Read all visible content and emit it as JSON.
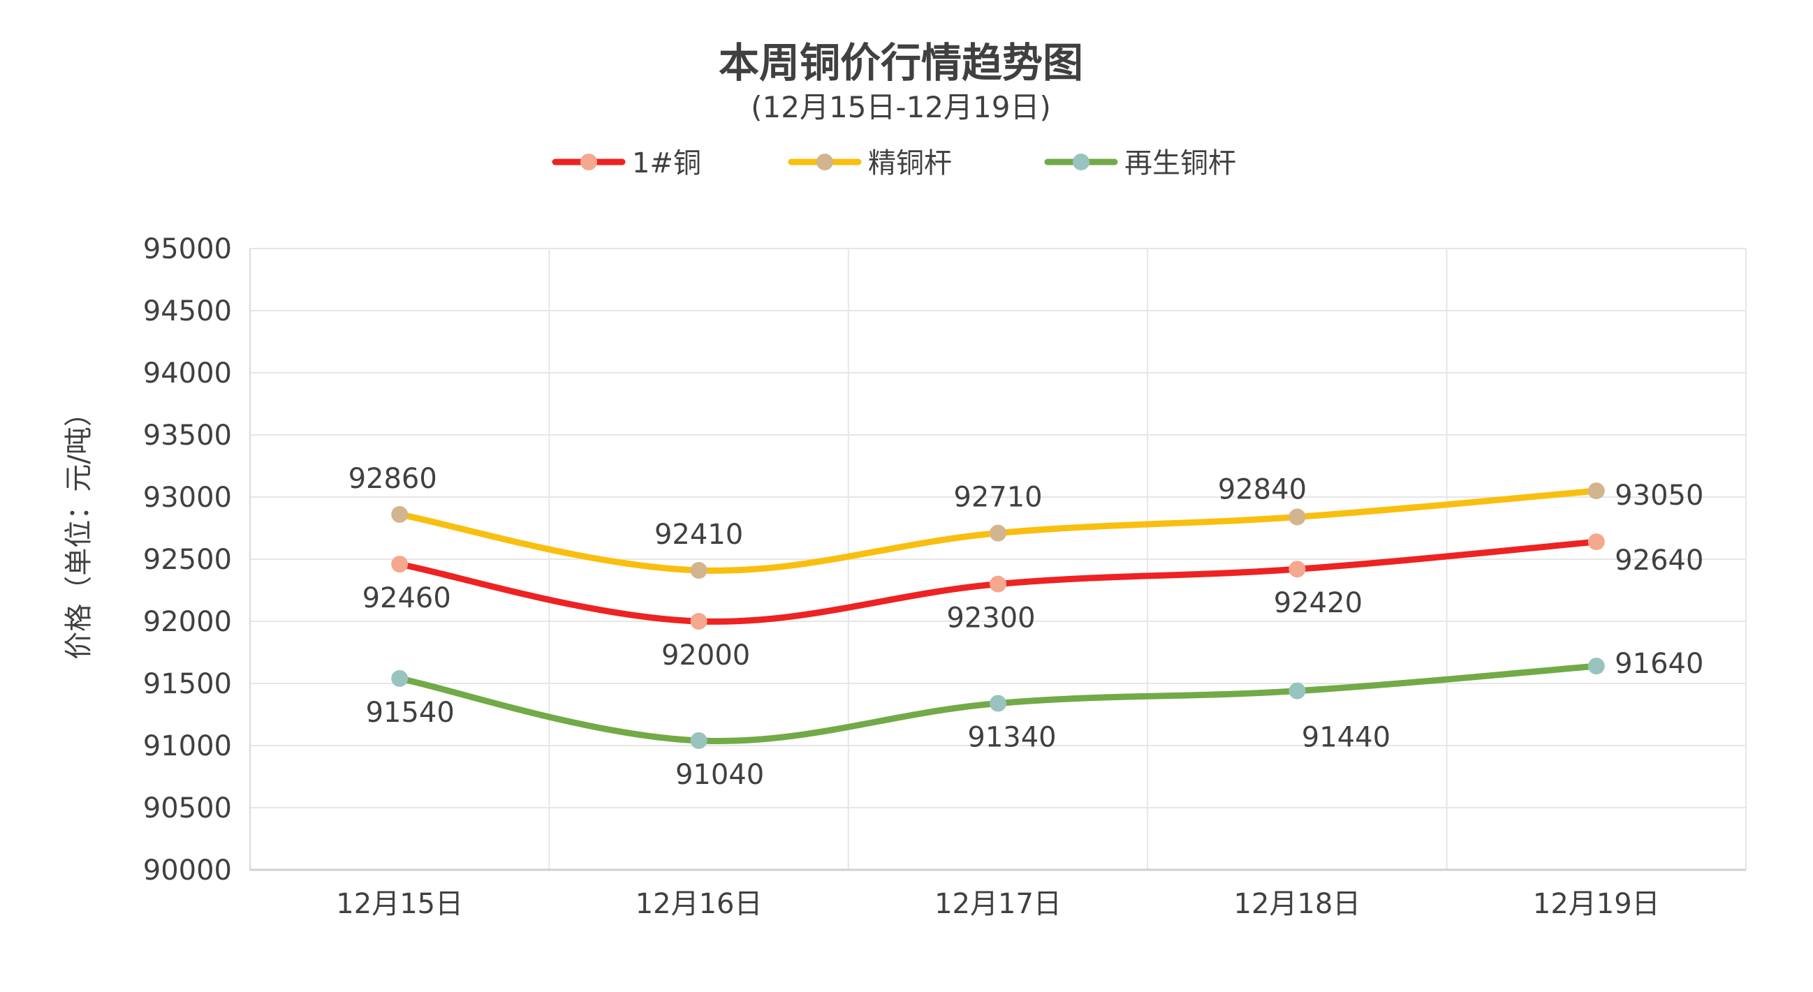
{
  "chart_data": {
    "type": "line",
    "title": "本周铜价行情趋势图",
    "subtitle": "(12月15日-12月19日)",
    "ylabel": "价格（单位：元/吨）",
    "xlabel": "",
    "categories": [
      "12月15日",
      "12月16日",
      "12月17日",
      "12月18日",
      "12月19日"
    ],
    "ylim": [
      90000,
      95000
    ],
    "ytick_step": 500,
    "ytick_labels": [
      "90000",
      "90500",
      "91000",
      "91500",
      "92000",
      "92500",
      "93000",
      "93500",
      "94000",
      "94500",
      "95000"
    ],
    "grid": true,
    "legend_position": "top",
    "smooth": true,
    "series": [
      {
        "name": "1#铜",
        "values": [
          92460,
          92000,
          92300,
          92420,
          92640
        ],
        "line_color": "#ee2222",
        "marker_color": "#f4a88e",
        "label_position": "below"
      },
      {
        "name": "精铜杆",
        "values": [
          92860,
          92410,
          92710,
          92840,
          93050
        ],
        "line_color": "#f9bf0f",
        "marker_color": "#d2b48f",
        "label_position": "above"
      },
      {
        "name": "再生铜杆",
        "values": [
          91540,
          91040,
          91340,
          91440,
          91640
        ],
        "line_color": "#71aa47",
        "marker_color": "#99c3bf",
        "label_position": "below"
      }
    ]
  }
}
